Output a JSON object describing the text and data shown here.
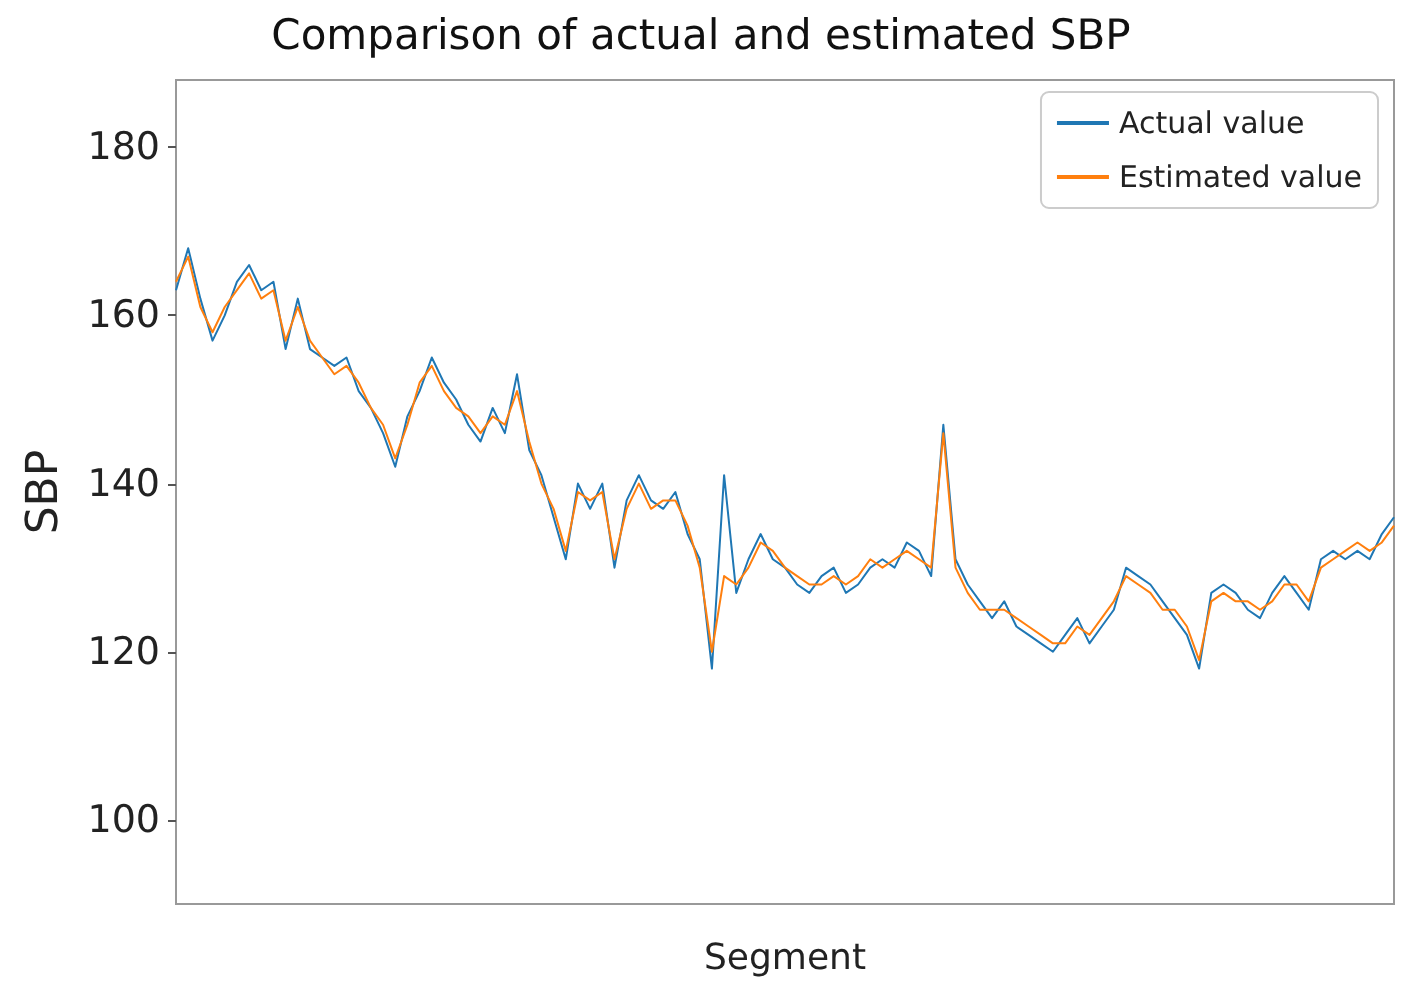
{
  "chart_data": {
    "type": "line",
    "title": "Comparison of actual and estimated SBP",
    "xlabel": "Segment",
    "ylabel": "SBP",
    "categories": [
      null,
      null,
      null,
      null,
      null,
      null,
      null,
      null,
      null,
      null,
      null,
      null,
      null,
      null,
      null,
      null,
      null,
      null,
      null,
      null,
      null,
      null,
      null,
      null,
      null,
      null,
      null,
      null,
      null,
      null,
      null,
      null,
      null,
      null,
      null,
      null,
      null,
      null,
      null,
      null,
      null,
      null,
      null,
      null,
      null,
      null,
      null,
      null,
      null,
      null,
      null,
      null,
      null,
      null,
      null,
      null,
      null,
      null,
      null,
      null,
      null,
      null,
      null,
      null,
      null,
      null,
      null,
      null,
      null,
      null,
      null,
      null,
      null,
      null,
      null,
      null,
      null,
      null,
      null,
      null,
      null,
      null,
      null,
      null,
      null,
      null,
      null,
      null,
      null,
      null,
      null,
      null,
      null,
      null,
      null,
      null,
      null,
      null,
      null,
      null,
      null
    ],
    "series": [
      {
        "name": "Actual value",
        "color": "#1f77b4",
        "values": [
          163,
          168,
          162,
          157,
          160,
          164,
          166,
          163,
          164,
          156,
          162,
          156,
          155,
          154,
          155,
          151,
          149,
          146,
          142,
          148,
          151,
          155,
          152,
          150,
          147,
          145,
          149,
          146,
          153,
          144,
          141,
          136,
          131,
          140,
          137,
          140,
          130,
          138,
          141,
          138,
          137,
          139,
          134,
          131,
          118,
          141,
          127,
          131,
          134,
          131,
          130,
          128,
          127,
          129,
          130,
          127,
          128,
          130,
          131,
          130,
          133,
          132,
          129,
          147,
          131,
          128,
          126,
          124,
          126,
          123,
          122,
          121,
          120,
          122,
          124,
          121,
          123,
          125,
          130,
          129,
          128,
          126,
          124,
          122,
          118,
          127,
          128,
          127,
          125,
          124,
          127,
          129,
          127,
          125,
          131,
          132,
          131,
          132,
          131,
          134,
          136
        ]
      },
      {
        "name": "Estimated value",
        "color": "#ff7f0e",
        "values": [
          164,
          167,
          161,
          158,
          161,
          163,
          165,
          162,
          163,
          157,
          161,
          157,
          155,
          153,
          154,
          152,
          149,
          147,
          143,
          147,
          152,
          154,
          151,
          149,
          148,
          146,
          148,
          147,
          151,
          145,
          140,
          137,
          132,
          139,
          138,
          139,
          131,
          137,
          140,
          137,
          138,
          138,
          135,
          130,
          120,
          129,
          128,
          130,
          133,
          132,
          130,
          129,
          128,
          128,
          129,
          128,
          129,
          131,
          130,
          131,
          132,
          131,
          130,
          146,
          130,
          127,
          125,
          125,
          125,
          124,
          123,
          122,
          121,
          121,
          123,
          122,
          124,
          126,
          129,
          128,
          127,
          125,
          125,
          123,
          119,
          126,
          127,
          126,
          126,
          125,
          126,
          128,
          128,
          126,
          130,
          131,
          132,
          133,
          132,
          133,
          135
        ]
      }
    ],
    "ylim": [
      90,
      188
    ],
    "yticks": [
      100,
      120,
      140,
      160,
      180
    ],
    "grid": false,
    "legend": "top right"
  }
}
